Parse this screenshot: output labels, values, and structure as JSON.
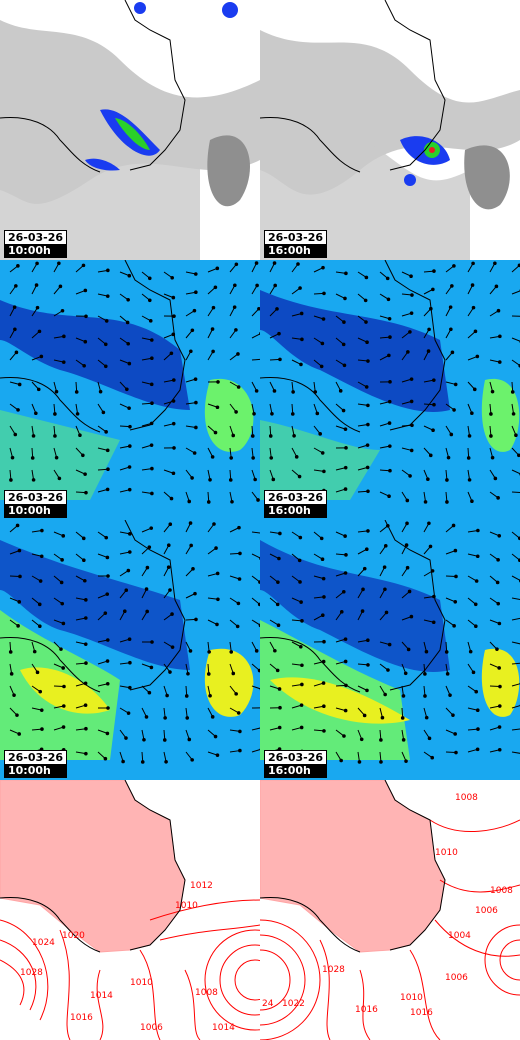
{
  "panels": [
    {
      "row": "satellite",
      "date": "26-03-26",
      "time": "10:00h"
    },
    {
      "row": "satellite",
      "date": "26-03-26",
      "time": "16:00h"
    },
    {
      "row": "wind-low",
      "date": "26-03-26",
      "time": "10:00h"
    },
    {
      "row": "wind-low",
      "date": "26-03-26",
      "time": "16:00h"
    },
    {
      "row": "wind-high",
      "date": "26-03-26",
      "time": "10:00h"
    },
    {
      "row": "wind-high",
      "date": "26-03-26",
      "time": "16:00h"
    },
    {
      "row": "pressure"
    },
    {
      "row": "pressure"
    }
  ],
  "isobar_labels_left": [
    "1012",
    "1010",
    "1024",
    "1028",
    "1020",
    "1014",
    "1016",
    "1010",
    "1008",
    "1006",
    "1014"
  ],
  "isobar_labels_right": [
    "1008",
    "1010",
    "1008",
    "1006",
    "1004",
    "1006",
    "1028",
    "1010",
    "1016",
    "1016",
    "1022",
    "24"
  ],
  "colors": {
    "coast": "#000000",
    "isobar": "#ff0000",
    "cloud": "#b8b8b8",
    "wind_bg": "#19a8f0",
    "wind_deep": "#0a32b8",
    "wind_green": "#6cf26c",
    "wind_yellow": "#e8f020"
  }
}
